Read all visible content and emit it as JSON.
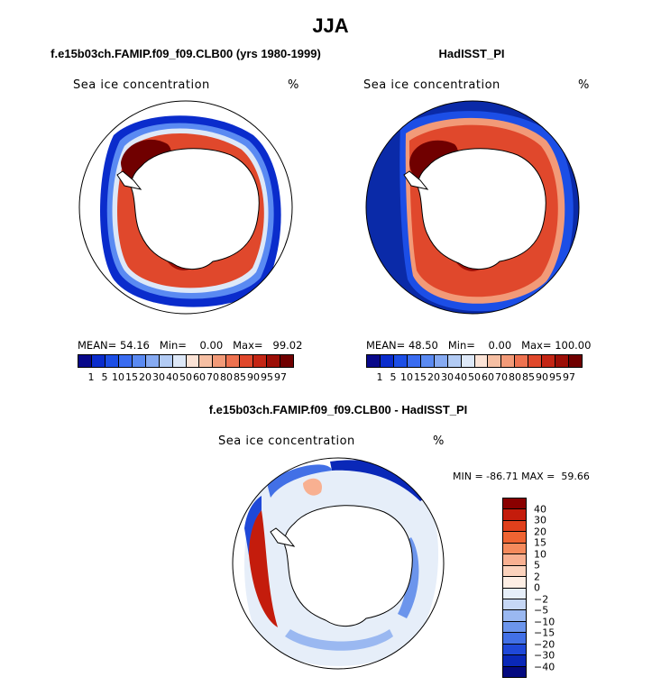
{
  "main_title": "JJA",
  "panels": [
    {
      "title": "f.e15b03ch.FAMIP.f09_f09.CLB00 (yrs 1980-1999)",
      "variable": "Sea ice concentration",
      "units": "%",
      "mean_label": "MEAN=",
      "mean": "54.16",
      "min_label": "Min=",
      "min": "0.00",
      "max_label": "Max=",
      "max": "99.02"
    },
    {
      "title": "HadISST_PI",
      "variable": "Sea ice concentration",
      "units": "%",
      "mean_label": "MEAN=",
      "mean": "48.50",
      "min_label": "Min=",
      "min": "0.00",
      "max_label": "Max=",
      "max": "100.00"
    }
  ],
  "diff_panel": {
    "title": "f.e15b03ch.FAMIP.f09_f09.CLB00 - HadISST_PI",
    "variable": "Sea ice concentration",
    "units": "%",
    "minmax": "MIN = -86.71 MAX =  59.66"
  },
  "colorbar_levels": [
    "1",
    "5",
    "10",
    "15",
    "20",
    "30",
    "40",
    "50",
    "60",
    "70",
    "80",
    "85",
    "90",
    "95",
    "97"
  ],
  "colorbar_colors": [
    "#08088a",
    "#0a2ccc",
    "#1c4ee6",
    "#3a6cf0",
    "#5a8af2",
    "#86aaf2",
    "#b2cbf4",
    "#dde8f8",
    "#fbe3d6",
    "#f6bfa3",
    "#f29a78",
    "#ee7250",
    "#e0482c",
    "#c42514",
    "#9c0e06",
    "#700000"
  ],
  "diff_levels": [
    "40",
    "30",
    "20",
    "15",
    "10",
    "5",
    "2",
    "0",
    "−2",
    "−5",
    "−10",
    "−15",
    "−20",
    "−30",
    "−40"
  ],
  "diff_colors": [
    "#8a0000",
    "#c41c0c",
    "#e0401c",
    "#ef6432",
    "#f58a5c",
    "#f8b091",
    "#fbd2bc",
    "#fdeee4",
    "#e6eef9",
    "#c6d7f5",
    "#9ab8f1",
    "#6c95ec",
    "#4270e6",
    "#1f48d8",
    "#0a28b8",
    "#040a80"
  ],
  "map_colors": {
    "ocean": "#ffffff",
    "land": "#ffffff",
    "coast": "#000000",
    "open_ocean_obs": "#0a2aa8"
  }
}
